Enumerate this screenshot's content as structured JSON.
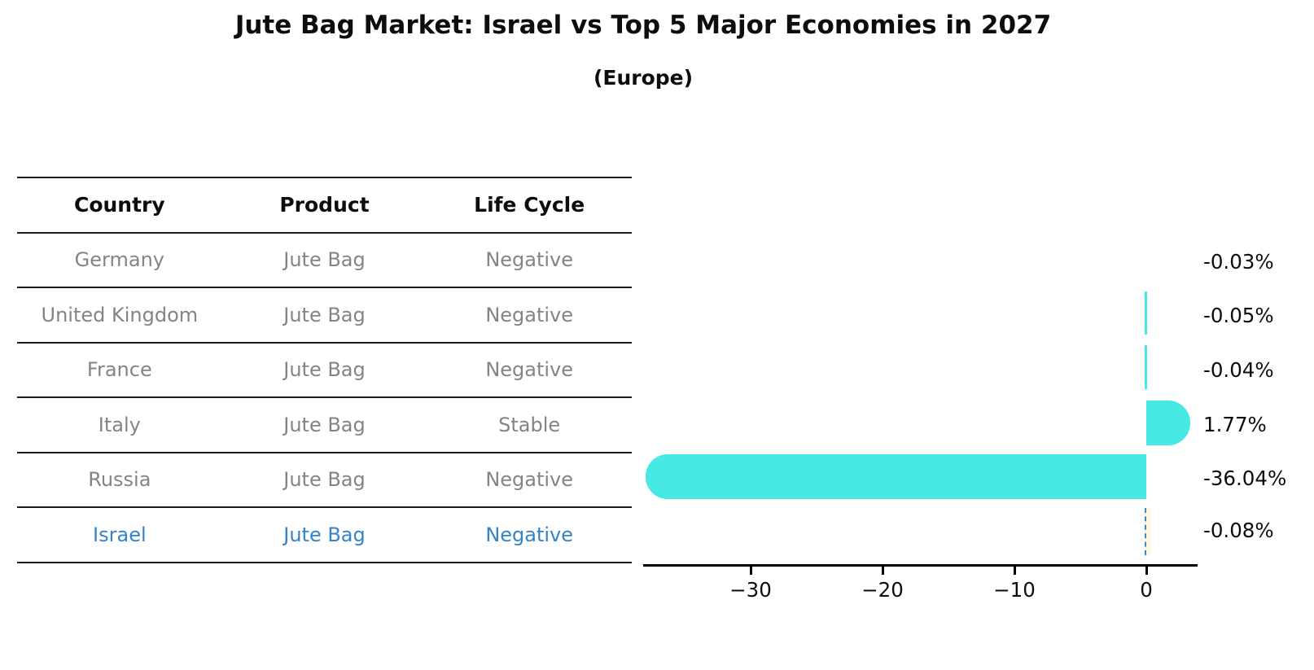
{
  "title": "Jute Bag Market: Israel vs Top 5 Major Economies in 2027",
  "subtitle": "(Europe)",
  "table": {
    "headers": [
      "Country",
      "Product",
      "Life Cycle"
    ],
    "rows": [
      {
        "country": "Germany",
        "product": "Jute Bag",
        "life_cycle": "Negative",
        "highlighted": false
      },
      {
        "country": "United Kingdom",
        "product": "Jute Bag",
        "life_cycle": "Negative",
        "highlighted": false
      },
      {
        "country": "France",
        "product": "Jute Bag",
        "life_cycle": "Negative",
        "highlighted": false
      },
      {
        "country": "Italy",
        "product": "Jute Bag",
        "life_cycle": "Stable",
        "highlighted": false
      },
      {
        "country": "Russia",
        "product": "Jute Bag",
        "life_cycle": "Negative",
        "highlighted": false
      },
      {
        "country": "Israel",
        "product": "Jute Bag",
        "life_cycle": "Negative",
        "highlighted": true
      }
    ]
  },
  "chart_data": {
    "type": "bar",
    "orientation": "horizontal",
    "title": "Jute Bag Market: Israel vs Top 5 Major Economies in 2027",
    "subtitle": "(Europe)",
    "categories": [
      "Germany",
      "United Kingdom",
      "France",
      "Italy",
      "Russia",
      "Israel"
    ],
    "values": [
      -0.03,
      -0.05,
      -0.04,
      1.77,
      -36.04,
      -0.08
    ],
    "value_labels": [
      "-0.03%",
      "-0.05%",
      "-0.04%",
      "1.77%",
      "-36.04%",
      "-0.08%"
    ],
    "unit": "percent",
    "x_tick_labels": [
      "−30",
      "−20",
      "−10",
      "0"
    ],
    "x_tick_values": [
      -30,
      -20,
      -10,
      0
    ],
    "xlim": [
      -38.2,
      3.9
    ],
    "grid": false,
    "legend": false,
    "bar_color": "#48e8e4",
    "highlight_category": "Israel",
    "highlight_style": "dashed-outline",
    "highlight_color": "#3d87c8"
  },
  "colors": {
    "bar_cyan": "#48e8e4",
    "israel_blue": "#3583c6",
    "table_text_gray": "#848484",
    "text_black": "#0d0d0d",
    "background": "#ffffff"
  }
}
